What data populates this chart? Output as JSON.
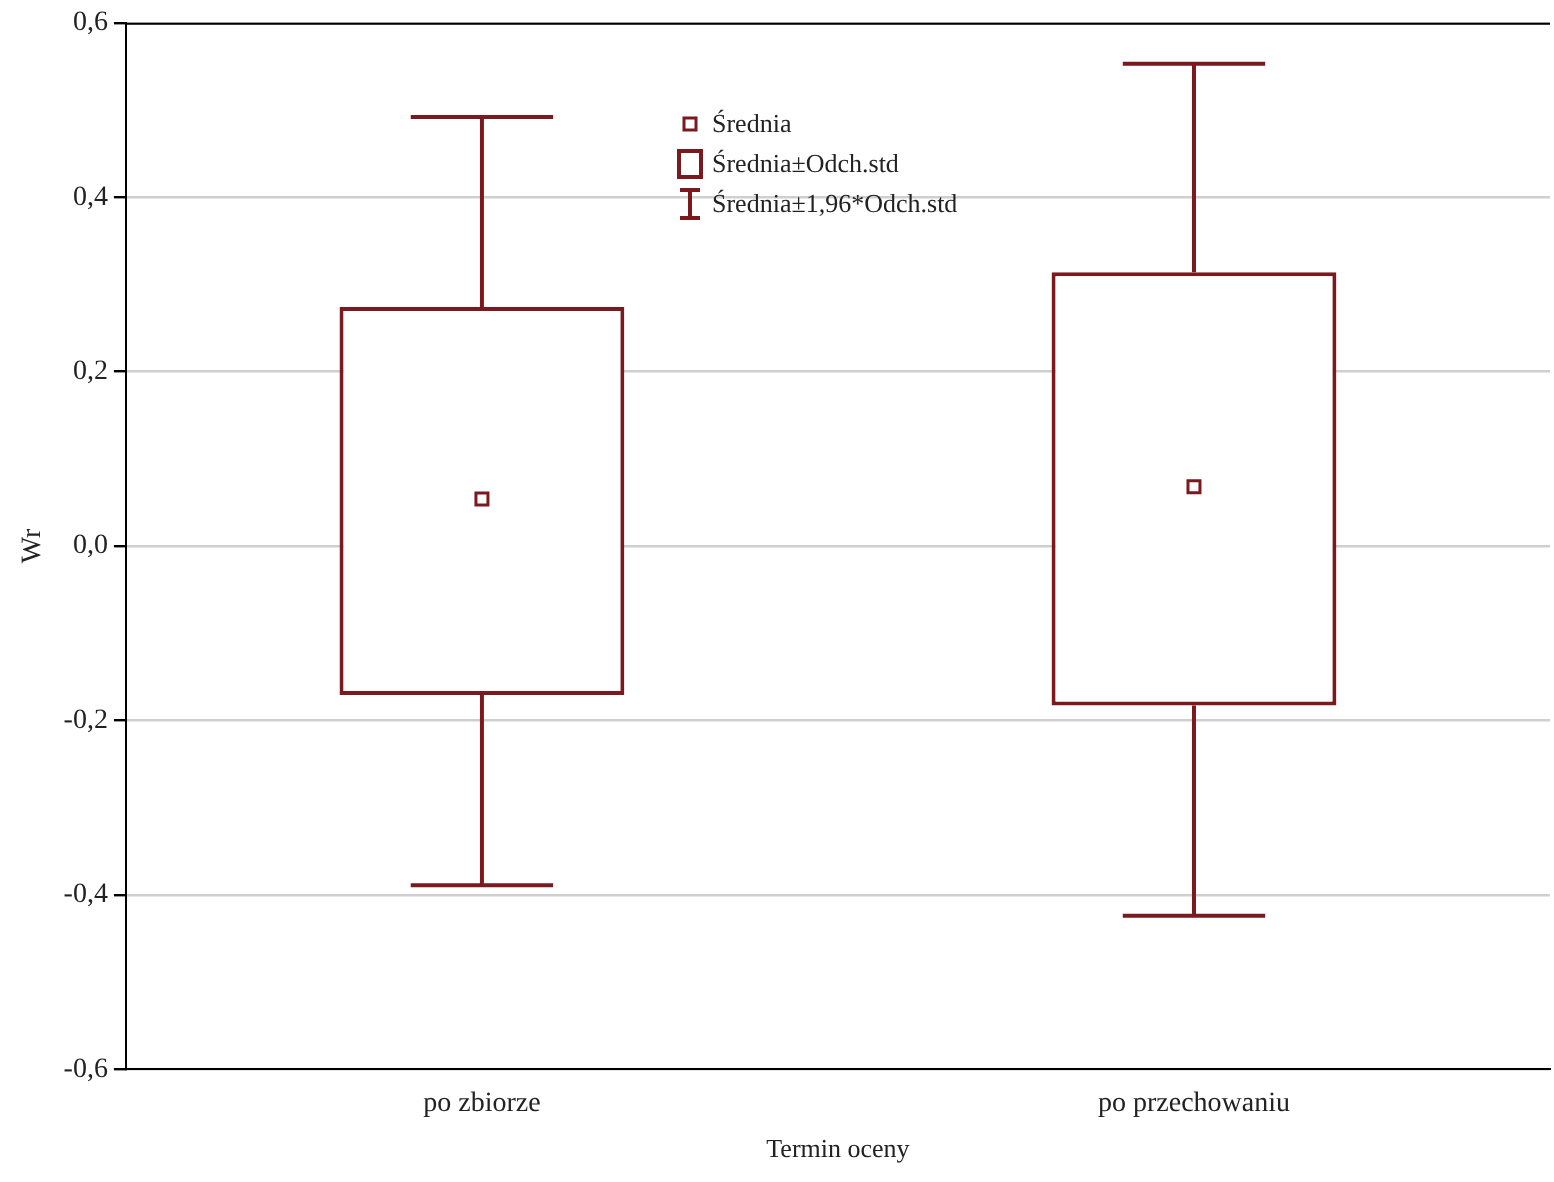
{
  "chart_data": {
    "type": "box",
    "xlabel": "Termin oceny",
    "ylabel": "Wr",
    "categories": [
      "po zbiorze",
      "po przechowaniu"
    ],
    "color": "#7b1a1e",
    "boxes": [
      {
        "low": -0.389,
        "q1": -0.171,
        "median": 0.054,
        "q3": 0.274,
        "high": 0.492
      },
      {
        "low": -0.424,
        "q1": -0.183,
        "median": 0.068,
        "q3": 0.314,
        "high": 0.553
      }
    ],
    "ylim": [
      -0.6,
      0.6
    ],
    "yticks": [
      {
        "value": -0.6,
        "label": "-0,6"
      },
      {
        "value": -0.4,
        "label": "-0,4"
      },
      {
        "value": -0.2,
        "label": "-0,2"
      },
      {
        "value": 0,
        "label": "0,0"
      },
      {
        "value": 0.2,
        "label": "0,2"
      },
      {
        "value": 0.4,
        "label": "0,4"
      },
      {
        "value": 0.6,
        "label": "0,6"
      }
    ],
    "grid": "y",
    "annotations": [
      "Średnia",
      "Średnia±Odch.std",
      "Średnia±1,96*Odch.std"
    ]
  }
}
